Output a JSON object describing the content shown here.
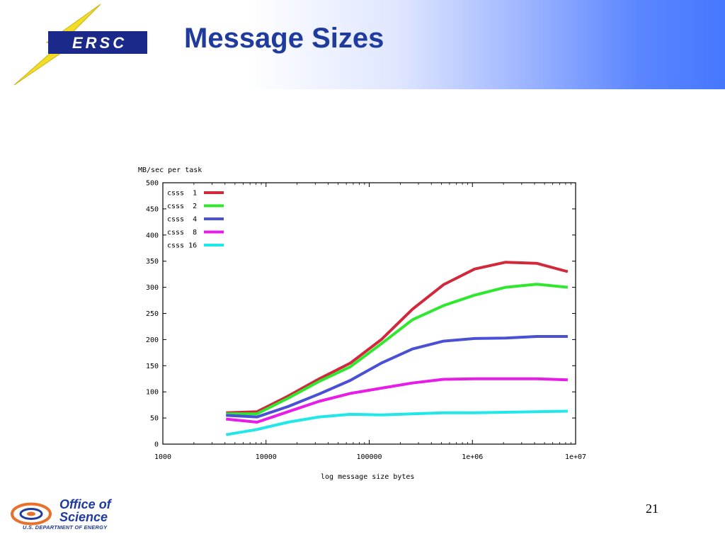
{
  "slide": {
    "title": "Message Sizes",
    "page_number": "21"
  },
  "logos": {
    "nersc_text": "ERSC",
    "doe_line1": "Office of",
    "doe_line2": "Science",
    "doe_line3": "U.S. DEPARTMENT OF ENERGY"
  },
  "colors": {
    "title": "#1f3b9e",
    "header_gradient_end": "#4577ff",
    "nersc_bolt": "#f2dc25",
    "nersc_box": "#1b2a8a",
    "doe_orange": "#e8702a"
  },
  "chart_data": {
    "type": "line",
    "title": "",
    "ylabel": "MB/sec per task",
    "xlabel": "log message size bytes",
    "x_scale": "log",
    "xlim": [
      1000,
      10000000
    ],
    "ylim": [
      0,
      500
    ],
    "x_tick_values": [
      1000,
      10000,
      100000,
      1000000,
      10000000
    ],
    "x_tick_labels": [
      "1000",
      "10000",
      "100000",
      "1e+06",
      "1e+07"
    ],
    "y_ticks": [
      0,
      50,
      100,
      150,
      200,
      250,
      300,
      350,
      400,
      450,
      500
    ],
    "legend_position": "top-left",
    "grid": false,
    "x": [
      4096,
      8192,
      16384,
      32768,
      65536,
      131072,
      262144,
      524288,
      1048576,
      2097152,
      4194304,
      8388608
    ],
    "series": [
      {
        "name": "csss  1",
        "color": "#d2283c",
        "values": [
          60,
          62,
          92,
          125,
          155,
          200,
          258,
          305,
          335,
          348,
          346,
          330
        ]
      },
      {
        "name": "csss  2",
        "color": "#2ee82e",
        "values": [
          58,
          58,
          88,
          120,
          148,
          192,
          238,
          265,
          285,
          300,
          306,
          300
        ]
      },
      {
        "name": "csss  4",
        "color": "#4a50d6",
        "values": [
          55,
          52,
          72,
          96,
          122,
          155,
          182,
          197,
          202,
          203,
          206,
          206
        ]
      },
      {
        "name": "csss  8",
        "color": "#e81ce8",
        "values": [
          48,
          42,
          62,
          82,
          97,
          107,
          117,
          124,
          125,
          125,
          125,
          123
        ]
      },
      {
        "name": "csss 16",
        "color": "#20e8e8",
        "values": [
          18,
          28,
          42,
          52,
          57,
          56,
          58,
          60,
          60,
          61,
          62,
          63
        ]
      }
    ]
  }
}
